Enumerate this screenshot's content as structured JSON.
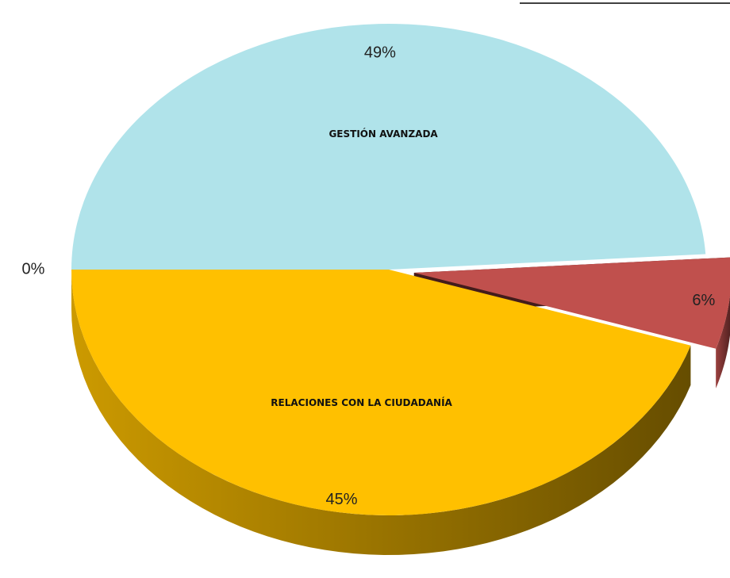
{
  "chart_data": {
    "type": "pie",
    "categories": [
      "GESTIÓN AVANZADA",
      null,
      "RELACIONES CON LA CIUDADANÍA",
      null
    ],
    "values": [
      49,
      6,
      45,
      0
    ],
    "value_labels": [
      "49%",
      "6%",
      "45%",
      "0%"
    ],
    "colors": [
      "#b0e3ea",
      "#c0504d",
      "#ffc000",
      "#92d050"
    ]
  }
}
